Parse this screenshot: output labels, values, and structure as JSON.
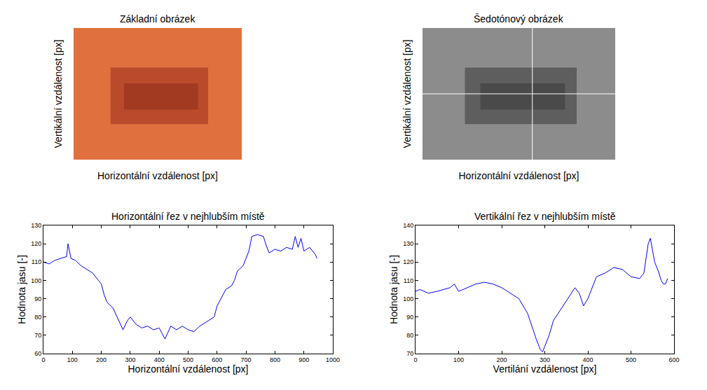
{
  "chart_data": [
    {
      "type": "image",
      "title": "Základní obrázek",
      "xlabel": "Horizontální vzdálenost [px]",
      "ylabel": "Vertikální vzdálenost [px]",
      "tick_labels": false
    },
    {
      "type": "image",
      "title": "Šedotónový obrázek",
      "xlabel": "Horizontální vzdálenost [px]",
      "ylabel": "Vertikální vzdálenost [px]",
      "tick_labels": false
    },
    {
      "type": "line",
      "title": "Horizontální řez v nejhlubším místě",
      "xlabel": "Horizontální vzdálenost [px]",
      "ylabel": "Hodnota jasu [-]",
      "color": "#0000ff",
      "grid": false,
      "x": [
        0,
        20,
        40,
        60,
        80,
        85,
        95,
        110,
        130,
        150,
        170,
        190,
        200,
        210,
        220,
        240,
        260,
        275,
        290,
        300,
        320,
        340,
        360,
        380,
        400,
        420,
        440,
        460,
        480,
        500,
        520,
        540,
        560,
        580,
        590,
        600,
        620,
        630,
        650,
        660,
        670,
        690,
        700,
        710,
        720,
        740,
        760,
        770,
        780,
        800,
        820,
        840,
        860,
        870,
        880,
        890,
        900,
        920,
        940,
        945
      ],
      "values": [
        110,
        109,
        111,
        112,
        113,
        120,
        112,
        111,
        108,
        106,
        104,
        100,
        98,
        92,
        88,
        85,
        78,
        73,
        78,
        80,
        76,
        74,
        75,
        73,
        74,
        68,
        75,
        73,
        75,
        73,
        72,
        75,
        77,
        79,
        80,
        86,
        92,
        95,
        97,
        100,
        105,
        108,
        112,
        116,
        124,
        125,
        124,
        119,
        115,
        117,
        116,
        118,
        117,
        124,
        118,
        123,
        116,
        118,
        114,
        112
      ],
      "xlim": [
        0,
        1000
      ],
      "xticks": [
        0,
        100,
        200,
        300,
        400,
        500,
        600,
        700,
        800,
        900,
        1000
      ],
      "ylim": [
        60,
        130
      ],
      "yticks": [
        60,
        70,
        80,
        90,
        100,
        110,
        120,
        130
      ]
    },
    {
      "type": "line",
      "title": "Vertikální řez v nejhlubším místě",
      "xlabel": "Vertilání vzdálenost [px]",
      "ylabel": "Hodnota jasu [-]",
      "color": "#0000ff",
      "grid": false,
      "x": [
        0,
        10,
        30,
        50,
        80,
        90,
        100,
        120,
        140,
        160,
        180,
        200,
        220,
        240,
        260,
        270,
        280,
        290,
        295,
        300,
        310,
        320,
        340,
        360,
        370,
        380,
        390,
        400,
        410,
        420,
        440,
        460,
        480,
        500,
        520,
        530,
        540,
        545,
        555,
        565,
        570,
        575,
        580,
        585
      ],
      "values": [
        104,
        105,
        103,
        104,
        106,
        108,
        104,
        106,
        108,
        109,
        108,
        106,
        103,
        100,
        92,
        85,
        78,
        72,
        71,
        74,
        80,
        88,
        95,
        102,
        106,
        103,
        96,
        100,
        106,
        112,
        114,
        117,
        116,
        112,
        111,
        114,
        130,
        133,
        120,
        114,
        110,
        108,
        108,
        111
      ],
      "xlim": [
        0,
        600
      ],
      "xticks": [
        0,
        100,
        200,
        300,
        400,
        500,
        600
      ],
      "ylim": [
        70,
        140
      ],
      "yticks": [
        70,
        80,
        90,
        100,
        110,
        120,
        130,
        140
      ]
    }
  ]
}
